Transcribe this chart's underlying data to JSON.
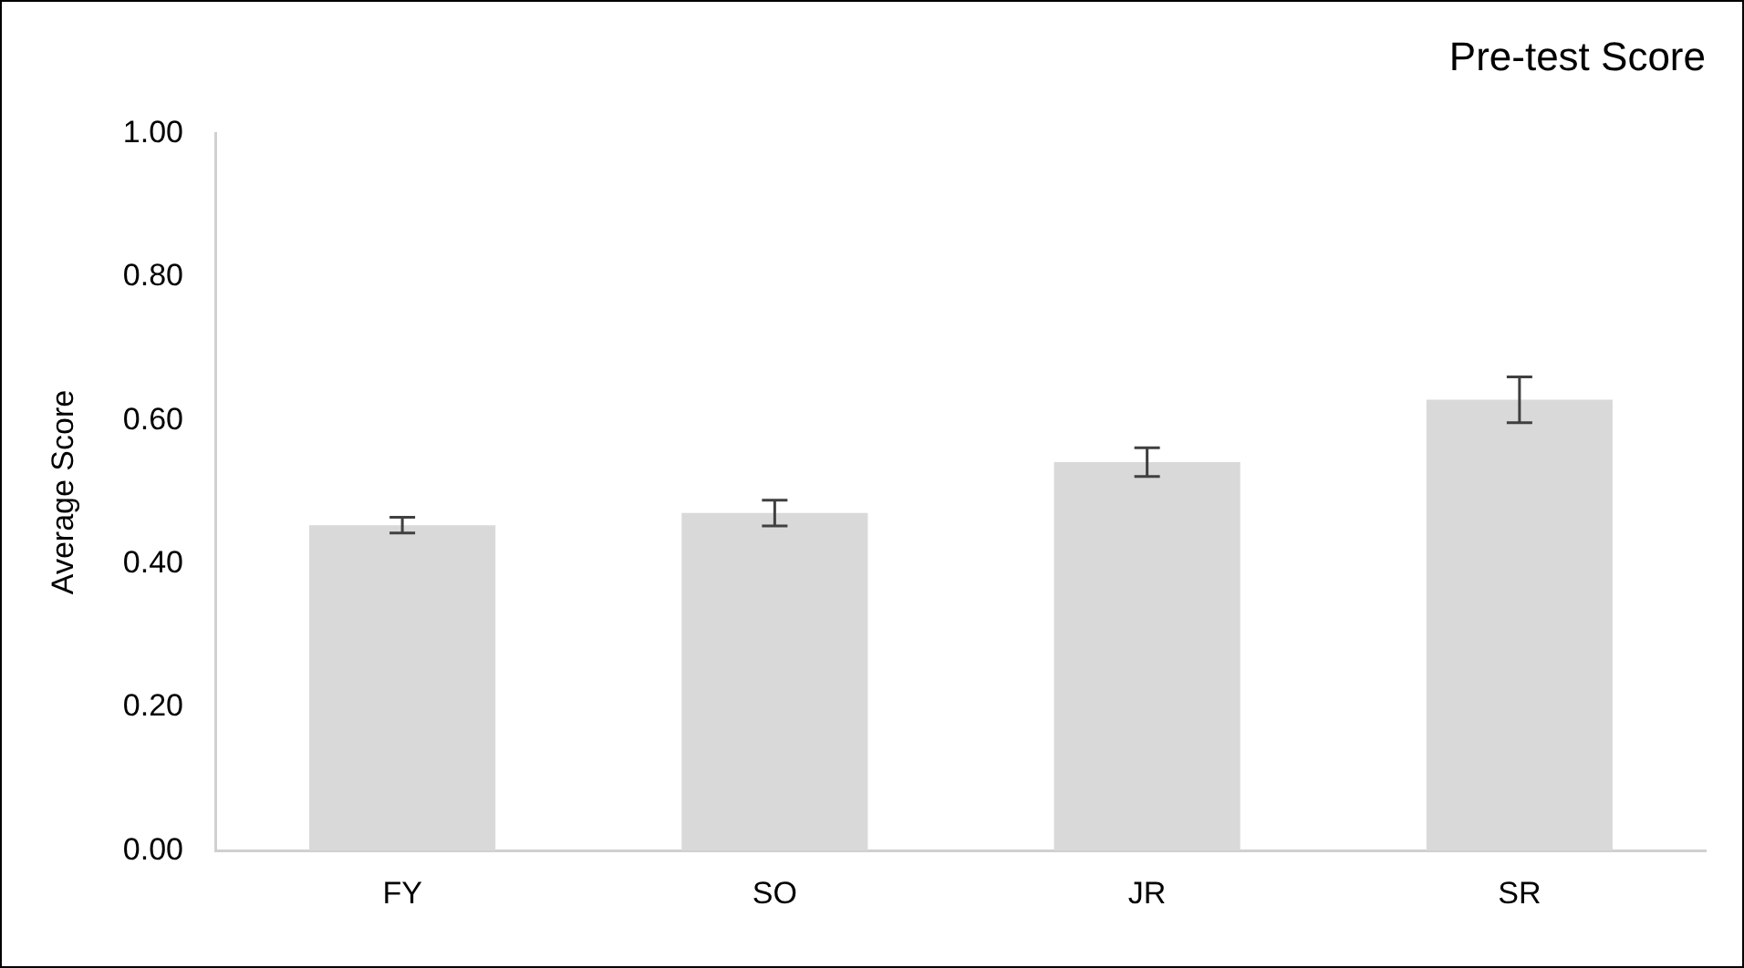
{
  "chart_data": {
    "type": "bar",
    "title": "Pre-test Score",
    "ylabel": "Average Score",
    "categories": [
      "FY",
      "SO",
      "JR",
      "SR"
    ],
    "values": [
      0.454,
      0.471,
      0.542,
      0.629
    ],
    "errors": [
      0.011,
      0.018,
      0.02,
      0.032
    ],
    "color": "#d9d9d9",
    "ylim": [
      0,
      1
    ],
    "yticks": [
      {
        "value": 0,
        "label": "0.00"
      },
      {
        "value": 0.2,
        "label": "0.20"
      },
      {
        "value": 0.4,
        "label": "0.40"
      },
      {
        "value": 0.6,
        "label": "0.60"
      },
      {
        "value": 0.8,
        "label": "0.80"
      },
      {
        "value": 1,
        "label": "1.00"
      }
    ],
    "grid": false,
    "legend": false
  }
}
